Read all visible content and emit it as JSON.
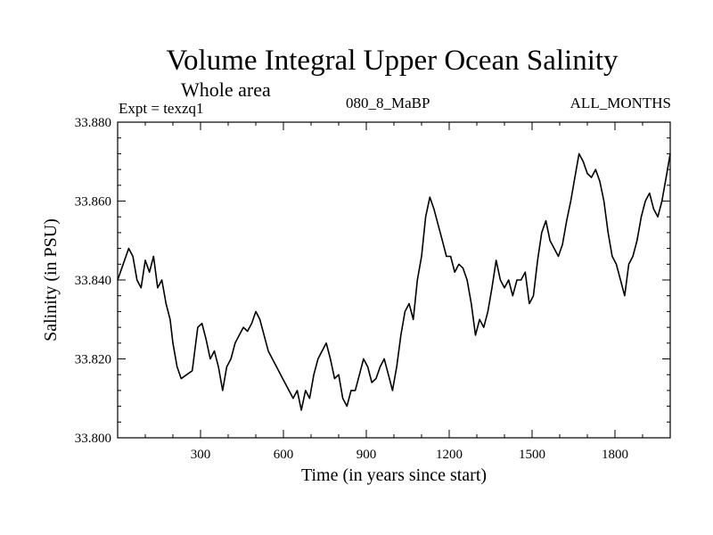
{
  "header": {
    "title": "Volume Integral Upper Ocean Salinity",
    "subtitle": "Whole area",
    "expt": "Expt = texzq1",
    "center_label": "080_8_MaBP",
    "right_label": "ALL_MONTHS"
  },
  "chart_data": {
    "type": "line",
    "title": "Volume Integral Upper Ocean Salinity",
    "xlabel": "Time (in years since start)",
    "ylabel": "Salinity (in PSU)",
    "xlim": [
      0,
      2000
    ],
    "ylim": [
      33.8,
      33.88
    ],
    "x_ticks": [
      300,
      600,
      900,
      1200,
      1500,
      1800
    ],
    "x_tick_labels": [
      "300",
      "600",
      "900",
      "1200",
      "1500",
      "1800"
    ],
    "y_ticks": [
      33.8,
      33.82,
      33.84,
      33.86,
      33.88
    ],
    "y_tick_labels": [
      "33.800",
      "33.820",
      "33.840",
      "33.860",
      "33.880"
    ],
    "x_minor_step": 100,
    "y_minor_step": 0.004,
    "grid": false,
    "line_color": "#000000",
    "series": [
      {
        "name": "salinity",
        "x": [
          0,
          20,
          40,
          55,
          70,
          85,
          100,
          115,
          130,
          145,
          160,
          175,
          190,
          200,
          215,
          230,
          250,
          270,
          290,
          305,
          320,
          335,
          350,
          365,
          380,
          395,
          410,
          425,
          440,
          455,
          470,
          485,
          500,
          515,
          530,
          545,
          560,
          575,
          590,
          605,
          620,
          635,
          650,
          665,
          680,
          695,
          710,
          725,
          740,
          755,
          770,
          785,
          800,
          815,
          830,
          845,
          860,
          875,
          890,
          905,
          920,
          935,
          950,
          965,
          980,
          995,
          1010,
          1025,
          1040,
          1055,
          1070,
          1085,
          1100,
          1115,
          1130,
          1145,
          1160,
          1175,
          1190,
          1205,
          1220,
          1235,
          1250,
          1265,
          1280,
          1295,
          1310,
          1325,
          1340,
          1355,
          1370,
          1385,
          1400,
          1415,
          1430,
          1445,
          1460,
          1475,
          1490,
          1505,
          1520,
          1535,
          1550,
          1565,
          1580,
          1595,
          1610,
          1625,
          1640,
          1655,
          1670,
          1685,
          1700,
          1715,
          1730,
          1745,
          1760,
          1775,
          1790,
          1805,
          1820,
          1835,
          1850,
          1865,
          1880,
          1895,
          1910,
          1925,
          1940,
          1955,
          1970,
          1985,
          2000
        ],
        "values": [
          33.84,
          33.844,
          33.848,
          33.846,
          33.84,
          33.838,
          33.845,
          33.842,
          33.846,
          33.838,
          33.84,
          33.834,
          33.83,
          33.824,
          33.818,
          33.815,
          33.816,
          33.817,
          33.828,
          33.829,
          33.825,
          33.82,
          33.822,
          33.818,
          33.812,
          33.818,
          33.82,
          33.824,
          33.826,
          33.828,
          33.827,
          33.829,
          33.832,
          33.83,
          33.826,
          33.822,
          33.82,
          33.818,
          33.816,
          33.814,
          33.812,
          33.81,
          33.812,
          33.807,
          33.812,
          33.81,
          33.816,
          33.82,
          33.822,
          33.824,
          33.82,
          33.815,
          33.816,
          33.81,
          33.808,
          33.812,
          33.812,
          33.816,
          33.82,
          33.818,
          33.814,
          33.815,
          33.818,
          33.82,
          33.816,
          33.812,
          33.818,
          33.826,
          33.832,
          33.834,
          33.83,
          33.84,
          33.846,
          33.856,
          33.861,
          33.858,
          33.854,
          33.85,
          33.846,
          33.846,
          33.842,
          33.844,
          33.843,
          33.84,
          33.834,
          33.826,
          33.83,
          33.828,
          33.832,
          33.838,
          33.845,
          33.84,
          33.838,
          33.84,
          33.836,
          33.84,
          33.84,
          33.842,
          33.834,
          33.836,
          33.845,
          33.852,
          33.855,
          33.85,
          33.848,
          33.846,
          33.849,
          33.855,
          33.86,
          33.866,
          33.872,
          33.87,
          33.867,
          33.866,
          33.868,
          33.865,
          33.86,
          33.852,
          33.846,
          33.844,
          33.84,
          33.836,
          33.844,
          33.846,
          33.85,
          33.856,
          33.86,
          33.862,
          33.858,
          33.856,
          33.86,
          33.866,
          33.872
        ]
      }
    ]
  }
}
